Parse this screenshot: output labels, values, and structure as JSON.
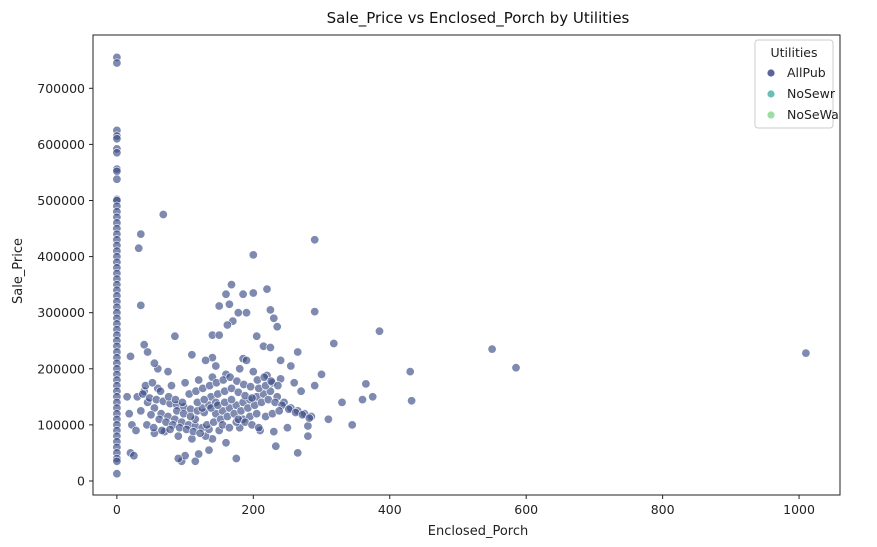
{
  "chart_data": {
    "type": "scatter",
    "title": "Sale_Price vs Enclosed_Porch by Utilities",
    "xlabel": "Enclosed_Porch",
    "ylabel": "Sale_Price",
    "xlim": [
      -35,
      1060
    ],
    "ylim": [
      -25000,
      795000
    ],
    "xticks": [
      0,
      200,
      400,
      600,
      800,
      1000
    ],
    "yticks": [
      0,
      100000,
      200000,
      300000,
      400000,
      500000,
      600000,
      700000
    ],
    "xtick_labels": [
      "0",
      "200",
      "400",
      "600",
      "800",
      "1000"
    ],
    "ytick_labels": [
      "0",
      "100000",
      "200000",
      "300000",
      "400000",
      "500000",
      "600000",
      "700000"
    ],
    "grid": false,
    "legend": {
      "title": "Utilities",
      "placement": "top-right",
      "entries": [
        "AllPub",
        "NoSewr",
        "NoSeWa"
      ]
    },
    "series": [
      {
        "name": "AllPub",
        "color": "#3b4c85",
        "points": [
          [
            0,
            755000
          ],
          [
            0,
            745000
          ],
          [
            0,
            625000
          ],
          [
            0,
            615000
          ],
          [
            0,
            610000
          ],
          [
            0,
            592000
          ],
          [
            0,
            585000
          ],
          [
            0,
            556000
          ],
          [
            0,
            552000
          ],
          [
            0,
            538000
          ],
          [
            0,
            502000
          ],
          [
            0,
            500000
          ],
          [
            0,
            490000
          ],
          [
            0,
            480000
          ],
          [
            0,
            470000
          ],
          [
            0,
            460000
          ],
          [
            0,
            450000
          ],
          [
            0,
            440000
          ],
          [
            0,
            430000
          ],
          [
            0,
            420000
          ],
          [
            0,
            410000
          ],
          [
            0,
            400000
          ],
          [
            0,
            390000
          ],
          [
            0,
            380000
          ],
          [
            0,
            370000
          ],
          [
            0,
            360000
          ],
          [
            0,
            350000
          ],
          [
            0,
            340000
          ],
          [
            0,
            330000
          ],
          [
            0,
            320000
          ],
          [
            0,
            310000
          ],
          [
            0,
            300000
          ],
          [
            0,
            290000
          ],
          [
            0,
            280000
          ],
          [
            0,
            270000
          ],
          [
            0,
            260000
          ],
          [
            0,
            250000
          ],
          [
            0,
            240000
          ],
          [
            0,
            230000
          ],
          [
            0,
            220000
          ],
          [
            0,
            210000
          ],
          [
            0,
            200000
          ],
          [
            0,
            190000
          ],
          [
            0,
            180000
          ],
          [
            0,
            170000
          ],
          [
            0,
            160000
          ],
          [
            0,
            150000
          ],
          [
            0,
            140000
          ],
          [
            0,
            130000
          ],
          [
            0,
            120000
          ],
          [
            0,
            110000
          ],
          [
            0,
            100000
          ],
          [
            0,
            90000
          ],
          [
            0,
            80000
          ],
          [
            0,
            70000
          ],
          [
            0,
            60000
          ],
          [
            0,
            50000
          ],
          [
            0,
            40000
          ],
          [
            0,
            35000
          ],
          [
            0,
            13000
          ],
          [
            68,
            475000
          ],
          [
            35,
            440000
          ],
          [
            32,
            415000
          ],
          [
            290,
            430000
          ],
          [
            200,
            403000
          ],
          [
            35,
            313000
          ],
          [
            168,
            350000
          ],
          [
            220,
            342000
          ],
          [
            200,
            335000
          ],
          [
            185,
            333000
          ],
          [
            160,
            333000
          ],
          [
            165,
            315000
          ],
          [
            290,
            302000
          ],
          [
            150,
            312000
          ],
          [
            225,
            305000
          ],
          [
            178,
            300000
          ],
          [
            190,
            300000
          ],
          [
            230,
            290000
          ],
          [
            170,
            285000
          ],
          [
            162,
            278000
          ],
          [
            235,
            275000
          ],
          [
            385,
            267000
          ],
          [
            140,
            260000
          ],
          [
            150,
            260000
          ],
          [
            205,
            258000
          ],
          [
            85,
            258000
          ],
          [
            215,
            240000
          ],
          [
            225,
            238000
          ],
          [
            318,
            245000
          ],
          [
            40,
            243000
          ],
          [
            550,
            235000
          ],
          [
            265,
            230000
          ],
          [
            1010,
            228000
          ],
          [
            20,
            222000
          ],
          [
            110,
            225000
          ],
          [
            140,
            220000
          ],
          [
            185,
            218000
          ],
          [
            190,
            215000
          ],
          [
            240,
            215000
          ],
          [
            255,
            205000
          ],
          [
            300,
            190000
          ],
          [
            430,
            195000
          ],
          [
            585,
            202000
          ],
          [
            365,
            173000
          ],
          [
            375,
            150000
          ],
          [
            345,
            100000
          ],
          [
            280,
            80000
          ],
          [
            265,
            50000
          ],
          [
            233,
            62000
          ],
          [
            175,
            40000
          ],
          [
            20,
            50000
          ],
          [
            25,
            45000
          ],
          [
            95,
            35000
          ],
          [
            115,
            35000
          ],
          [
            120,
            48000
          ],
          [
            100,
            45000
          ],
          [
            90,
            40000
          ],
          [
            135,
            55000
          ],
          [
            160,
            68000
          ],
          [
            140,
            75000
          ],
          [
            55,
            85000
          ],
          [
            70,
            88000
          ],
          [
            90,
            80000
          ],
          [
            110,
            75000
          ],
          [
            130,
            80000
          ],
          [
            150,
            90000
          ],
          [
            180,
            95000
          ],
          [
            210,
            90000
          ],
          [
            230,
            88000
          ],
          [
            250,
            95000
          ],
          [
            280,
            98000
          ],
          [
            310,
            110000
          ],
          [
            330,
            140000
          ],
          [
            360,
            145000
          ],
          [
            432,
            143000
          ],
          [
            270,
            160000
          ],
          [
            290,
            170000
          ],
          [
            260,
            175000
          ],
          [
            240,
            182000
          ],
          [
            220,
            188000
          ],
          [
            200,
            195000
          ],
          [
            180,
            200000
          ],
          [
            160,
            190000
          ],
          [
            140,
            185000
          ],
          [
            120,
            180000
          ],
          [
            100,
            175000
          ],
          [
            80,
            170000
          ],
          [
            60,
            165000
          ],
          [
            40,
            160000
          ],
          [
            30,
            150000
          ],
          [
            45,
            140000
          ],
          [
            55,
            130000
          ],
          [
            65,
            120000
          ],
          [
            75,
            115000
          ],
          [
            85,
            110000
          ],
          [
            95,
            105000
          ],
          [
            105,
            100000
          ],
          [
            115,
            98000
          ],
          [
            125,
            95000
          ],
          [
            135,
            92000
          ],
          [
            145,
            120000
          ],
          [
            155,
            125000
          ],
          [
            165,
            130000
          ],
          [
            175,
            135000
          ],
          [
            185,
            140000
          ],
          [
            195,
            145000
          ],
          [
            205,
            150000
          ],
          [
            215,
            155000
          ],
          [
            225,
            160000
          ],
          [
            235,
            150000
          ],
          [
            245,
            140000
          ],
          [
            255,
            130000
          ],
          [
            265,
            125000
          ],
          [
            275,
            120000
          ],
          [
            285,
            115000
          ],
          [
            35,
            125000
          ],
          [
            50,
            118000
          ],
          [
            62,
            110000
          ],
          [
            72,
            105000
          ],
          [
            82,
            100000
          ],
          [
            92,
            95000
          ],
          [
            102,
            92000
          ],
          [
            112,
            88000
          ],
          [
            122,
            85000
          ],
          [
            132,
            100000
          ],
          [
            142,
            105000
          ],
          [
            152,
            110000
          ],
          [
            162,
            115000
          ],
          [
            172,
            120000
          ],
          [
            182,
            125000
          ],
          [
            192,
            130000
          ],
          [
            202,
            135000
          ],
          [
            212,
            140000
          ],
          [
            222,
            145000
          ],
          [
            232,
            140000
          ],
          [
            242,
            135000
          ],
          [
            252,
            128000
          ],
          [
            262,
            122000
          ],
          [
            272,
            118000
          ],
          [
            282,
            112000
          ],
          [
            38,
            155000
          ],
          [
            48,
            148000
          ],
          [
            58,
            145000
          ],
          [
            68,
            142000
          ],
          [
            78,
            138000
          ],
          [
            88,
            135000
          ],
          [
            98,
            132000
          ],
          [
            108,
            128000
          ],
          [
            118,
            125000
          ],
          [
            128,
            122000
          ],
          [
            138,
            150000
          ],
          [
            148,
            155000
          ],
          [
            158,
            160000
          ],
          [
            168,
            165000
          ],
          [
            178,
            158000
          ],
          [
            188,
            152000
          ],
          [
            198,
            148000
          ],
          [
            208,
            165000
          ],
          [
            218,
            170000
          ],
          [
            228,
            175000
          ],
          [
            42,
            170000
          ],
          [
            52,
            175000
          ],
          [
            64,
            160000
          ],
          [
            76,
            150000
          ],
          [
            86,
            145000
          ],
          [
            96,
            140000
          ],
          [
            106,
            155000
          ],
          [
            116,
            160000
          ],
          [
            126,
            165000
          ],
          [
            136,
            170000
          ],
          [
            146,
            175000
          ],
          [
            156,
            180000
          ],
          [
            166,
            185000
          ],
          [
            176,
            178000
          ],
          [
            186,
            172000
          ],
          [
            196,
            168000
          ],
          [
            206,
            180000
          ],
          [
            216,
            185000
          ],
          [
            226,
            178000
          ],
          [
            236,
            170000
          ],
          [
            115,
            110000
          ],
          [
            125,
            130000
          ],
          [
            135,
            135000
          ],
          [
            145,
            140000
          ],
          [
            155,
            100000
          ],
          [
            165,
            95000
          ],
          [
            175,
            105000
          ],
          [
            185,
            110000
          ],
          [
            195,
            115000
          ],
          [
            205,
            120000
          ],
          [
            44,
            100000
          ],
          [
            54,
            95000
          ],
          [
            66,
            90000
          ],
          [
            78,
            92000
          ],
          [
            88,
            125000
          ],
          [
            98,
            120000
          ],
          [
            108,
            115000
          ],
          [
            118,
            140000
          ],
          [
            128,
            145000
          ],
          [
            138,
            130000
          ],
          [
            148,
            135000
          ],
          [
            158,
            140000
          ],
          [
            168,
            145000
          ],
          [
            178,
            110000
          ],
          [
            188,
            105000
          ],
          [
            198,
            100000
          ],
          [
            208,
            95000
          ],
          [
            218,
            115000
          ],
          [
            228,
            120000
          ],
          [
            238,
            125000
          ],
          [
            15,
            150000
          ],
          [
            18,
            120000
          ],
          [
            22,
            100000
          ],
          [
            28,
            90000
          ],
          [
            60,
            200000
          ],
          [
            75,
            195000
          ],
          [
            55,
            210000
          ],
          [
            45,
            230000
          ],
          [
            130,
            215000
          ],
          [
            145,
            205000
          ]
        ]
      },
      {
        "name": "NoSewr",
        "color": "#4fb3a8",
        "points": []
      },
      {
        "name": "NoSeWa",
        "color": "#8bd88e",
        "points": []
      }
    ]
  }
}
